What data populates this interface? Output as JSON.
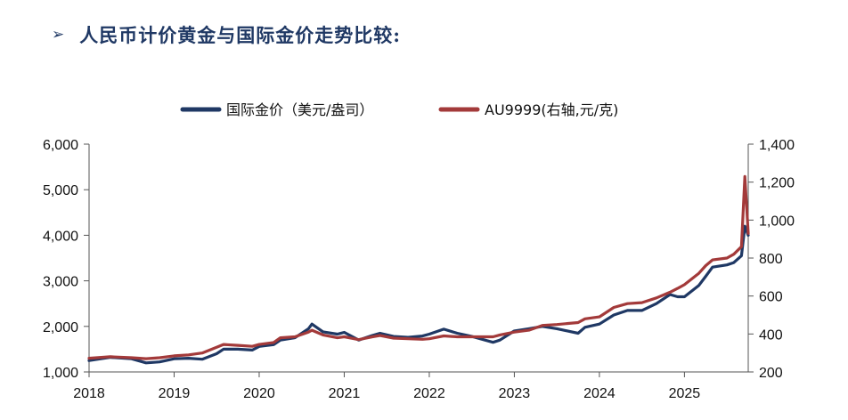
{
  "heading": {
    "marker": "➢",
    "text": "人民币计价黄金与国际金价走势比较:"
  },
  "colors": {
    "heading": "#1f3864",
    "series_gold_usd": "#1f3864",
    "series_au9999": "#a33a3a"
  },
  "chart_data": {
    "type": "line",
    "title": "",
    "legend_position": "top-center",
    "grid": false,
    "x_axis": {
      "label": "",
      "range": [
        2018.0,
        2025.75
      ],
      "ticks": [
        "2018",
        "2019",
        "2020",
        "2021",
        "2022",
        "2023",
        "2024",
        "2025"
      ]
    },
    "y_left": {
      "label": "",
      "range": [
        1000,
        6000
      ],
      "ticks": [
        "1,000",
        "2,000",
        "3,000",
        "4,000",
        "5,000",
        "6,000"
      ]
    },
    "y_right": {
      "label": "",
      "range": [
        200,
        1400
      ],
      "ticks": [
        "200",
        "400",
        "600",
        "800",
        "1,000",
        "1,200",
        "1,400"
      ]
    },
    "series": [
      {
        "name": "国际金价（美元/盎司）",
        "axis": "left",
        "x": [
          2018.0,
          2018.25,
          2018.5,
          2018.67,
          2018.83,
          2019.0,
          2019.17,
          2019.33,
          2019.5,
          2019.58,
          2019.75,
          2019.92,
          2020.0,
          2020.17,
          2020.25,
          2020.42,
          2020.58,
          2020.62,
          2020.75,
          2020.92,
          2021.0,
          2021.17,
          2021.33,
          2021.42,
          2021.58,
          2021.75,
          2021.92,
          2022.0,
          2022.17,
          2022.33,
          2022.5,
          2022.75,
          2022.83,
          2023.0,
          2023.17,
          2023.33,
          2023.5,
          2023.75,
          2023.83,
          2024.0,
          2024.17,
          2024.33,
          2024.5,
          2024.67,
          2024.83,
          2024.92,
          2025.0,
          2025.17,
          2025.25,
          2025.33,
          2025.5,
          2025.58,
          2025.67,
          2025.71,
          2025.75
        ],
        "y": [
          1250,
          1320,
          1290,
          1200,
          1220,
          1290,
          1300,
          1280,
          1400,
          1500,
          1500,
          1480,
          1560,
          1600,
          1700,
          1750,
          1950,
          2050,
          1880,
          1830,
          1870,
          1700,
          1800,
          1850,
          1780,
          1760,
          1790,
          1830,
          1940,
          1850,
          1780,
          1650,
          1700,
          1900,
          1950,
          2000,
          1950,
          1850,
          1980,
          2050,
          2250,
          2350,
          2350,
          2500,
          2700,
          2650,
          2650,
          2900,
          3100,
          3300,
          3350,
          3400,
          3550,
          4200,
          4000
        ]
      },
      {
        "name": "AU9999(右轴,元/克)",
        "axis": "right",
        "x": [
          2018.0,
          2018.25,
          2018.5,
          2018.67,
          2018.83,
          2019.0,
          2019.17,
          2019.33,
          2019.5,
          2019.58,
          2019.75,
          2019.92,
          2020.0,
          2020.17,
          2020.25,
          2020.42,
          2020.58,
          2020.62,
          2020.75,
          2020.92,
          2021.0,
          2021.17,
          2021.33,
          2021.42,
          2021.58,
          2021.75,
          2021.92,
          2022.0,
          2022.17,
          2022.33,
          2022.5,
          2022.75,
          2022.83,
          2023.0,
          2023.17,
          2023.33,
          2023.5,
          2023.75,
          2023.83,
          2024.0,
          2024.17,
          2024.33,
          2024.5,
          2024.67,
          2024.83,
          2024.92,
          2025.0,
          2025.17,
          2025.25,
          2025.33,
          2025.5,
          2025.58,
          2025.67,
          2025.71,
          2025.75
        ],
        "y": [
          272,
          280,
          275,
          270,
          275,
          285,
          290,
          300,
          330,
          345,
          340,
          335,
          345,
          355,
          380,
          385,
          410,
          420,
          395,
          380,
          385,
          370,
          385,
          392,
          378,
          375,
          372,
          375,
          390,
          385,
          385,
          385,
          395,
          410,
          420,
          445,
          450,
          460,
          480,
          490,
          540,
          560,
          565,
          590,
          620,
          640,
          660,
          720,
          760,
          790,
          800,
          820,
          860,
          1230,
          930
        ]
      }
    ]
  }
}
